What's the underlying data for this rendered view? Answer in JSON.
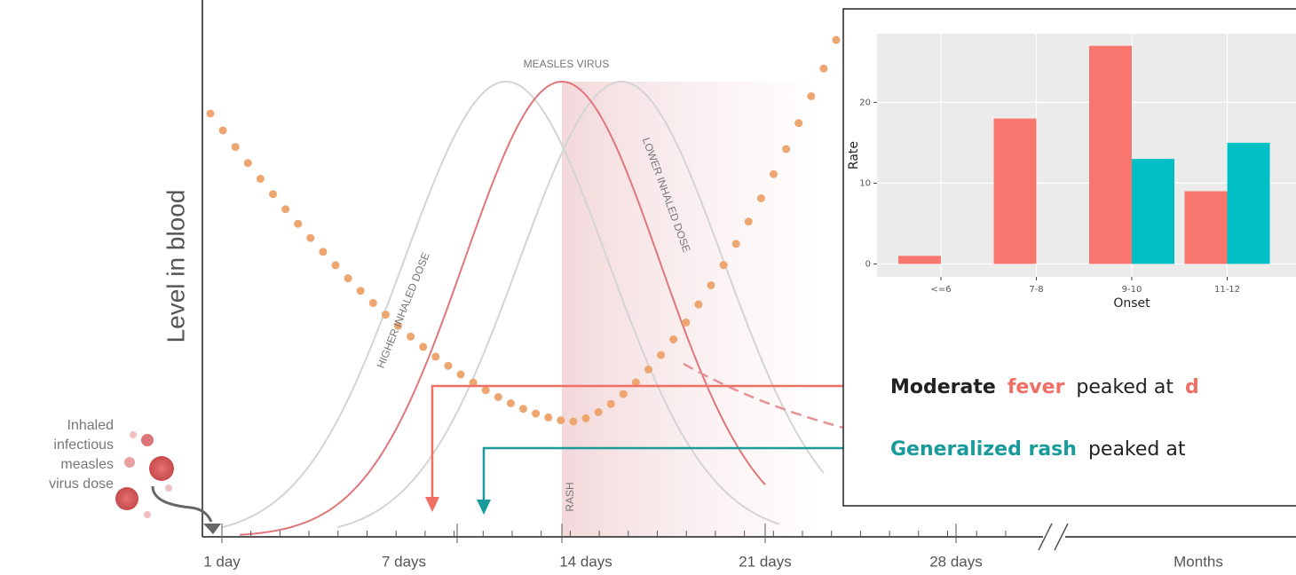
{
  "diagram": {
    "y_axis_label": "Level in blood",
    "x_labels": [
      "1 day",
      "7 days",
      "14 days",
      "21 days",
      "28 days",
      "Months"
    ],
    "curve_labels": {
      "virus": "MEASLES VIRUS",
      "higher": "HIGHER INHALED DOSE",
      "lower": "LOWER INHALED DOSE",
      "rash": "RASH"
    },
    "dose_label": [
      "Inhaled",
      "infectious",
      "measles",
      "virus dose"
    ],
    "notes": [
      {
        "parts": [
          "Moderate",
          "fever",
          "peaked at",
          "d"
        ]
      },
      {
        "parts": [
          "Generalized rash",
          "peaked at"
        ]
      }
    ]
  },
  "chart_data": {
    "type": "bar",
    "x_label": "Onset",
    "y_label": "Rate",
    "categories": [
      "<=6",
      "7-8",
      "9-10",
      "11-12"
    ],
    "series": [
      {
        "color": "#f8766d",
        "values": [
          1,
          18,
          27,
          9
        ]
      },
      {
        "color": "#00bfc4",
        "values": [
          0,
          0,
          13,
          15
        ]
      }
    ],
    "ylim": [
      -1.6,
      28.5
    ],
    "yticks": [
      0,
      10,
      20
    ],
    "grid": true
  }
}
